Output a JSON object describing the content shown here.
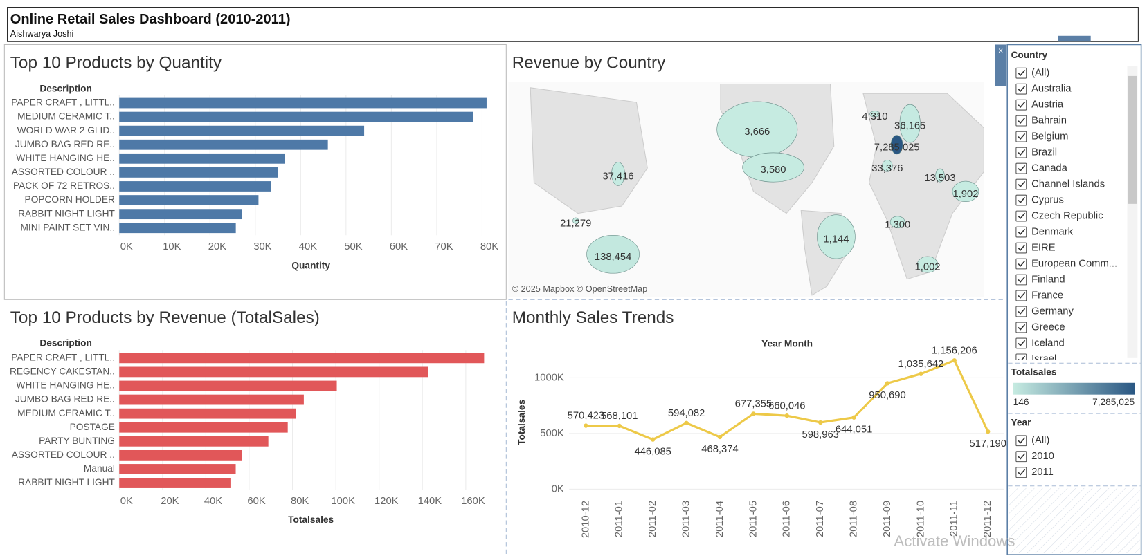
{
  "header": {
    "title": "Online Retail Sales Dashboard (2010-2011)",
    "subtitle": "Aishwarya Joshi"
  },
  "chart_data": [
    {
      "type": "bar",
      "orientation": "horizontal",
      "title": "Top 10 Products by Quantity",
      "y_title": "Description",
      "x_title": "Quantity",
      "categories": [
        "PAPER CRAFT , LITTL..",
        "MEDIUM CERAMIC T..",
        "WORLD WAR 2 GLID..",
        "JUMBO BAG RED RE..",
        "WHITE HANGING HE..",
        "ASSORTED COLOUR ..",
        "PACK OF 72 RETROS..",
        "POPCORN HOLDER",
        "RABBIT NIGHT LIGHT",
        "MINI PAINT SET VIN.."
      ],
      "values": [
        80995,
        78033,
        54000,
        46000,
        36500,
        35000,
        33500,
        30700,
        27000,
        25700
      ],
      "color": "#4e79a7",
      "xlim": [
        0,
        85000
      ],
      "xticks": [
        {
          "value": 0,
          "label": "0K"
        },
        {
          "value": 10000,
          "label": "10K"
        },
        {
          "value": 20000,
          "label": "20K"
        },
        {
          "value": 30000,
          "label": "30K"
        },
        {
          "value": 40000,
          "label": "40K"
        },
        {
          "value": 50000,
          "label": "50K"
        },
        {
          "value": 60000,
          "label": "60K"
        },
        {
          "value": 70000,
          "label": "70K"
        },
        {
          "value": 80000,
          "label": "80K"
        }
      ],
      "grid": true
    },
    {
      "type": "map",
      "title": "Revenue by Country",
      "credit": "© 2025 Mapbox © OpenStreetMap",
      "values": [
        3666,
        3580,
        37416,
        21279,
        138454,
        4310,
        36165,
        7285025,
        33376,
        13503,
        1902,
        1300,
        1144,
        1002
      ],
      "value_labels": [
        "3,666",
        "3,580",
        "37,416",
        "21,279",
        "138,454",
        "4,310",
        "36,165",
        "7,285,025",
        "33,376",
        "13,503",
        "1,902",
        "1,300",
        "1,144",
        "1,002"
      ],
      "color_scale": {
        "title": "Totalsales",
        "ticks": [
          146,
          {
            "value": 7285025,
            "label": "7,285,025"
          }
        ],
        "colors": [
          "#c6ebe1",
          "#2a5783"
        ]
      }
    },
    {
      "type": "bar",
      "orientation": "horizontal",
      "title": "Top 10 Products by Revenue (TotalSales)",
      "y_title": "Description",
      "x_title": "Totalsales",
      "categories": [
        "PAPER CRAFT , LITTL..",
        "REGENCY CAKESTAN..",
        "WHITE HANGING HE..",
        "JUMBO BAG RED RE..",
        "MEDIUM CERAMIC T..",
        "POSTAGE",
        "PARTY BUNTING",
        "ASSORTED COLOUR ..",
        "Manual",
        "RABBIT NIGHT LIGHT"
      ],
      "values": [
        168469,
        142593,
        100448,
        85220,
        81417,
        77804,
        68844,
        56580,
        53779,
        51346
      ],
      "color": "#e15759",
      "xlim": [
        0,
        178000
      ],
      "xticks": [
        {
          "value": 0,
          "label": "0K"
        },
        {
          "value": 20000,
          "label": "20K"
        },
        {
          "value": 40000,
          "label": "40K"
        },
        {
          "value": 60000,
          "label": "60K"
        },
        {
          "value": 80000,
          "label": "80K"
        },
        {
          "value": 100000,
          "label": "100K"
        },
        {
          "value": 120000,
          "label": "120K"
        },
        {
          "value": 140000,
          "label": "140K"
        },
        {
          "value": 160000,
          "label": "160K"
        }
      ],
      "grid": true
    },
    {
      "type": "line",
      "title": "Monthly Sales Trends",
      "x_title": "Year Month",
      "y_title": "Totalsales",
      "categories": [
        "2010-12",
        "2011-01",
        "2011-02",
        "2011-03",
        "2011-04",
        "2011-05",
        "2011-06",
        "2011-07",
        "2011-08",
        "2011-09",
        "2011-10",
        "2011-11",
        "2011-12"
      ],
      "values": [
        570423,
        568101,
        446085,
        594082,
        468374,
        677355,
        660046,
        598963,
        644051,
        950690,
        1035642,
        1156206,
        517190
      ],
      "value_labels": [
        "570,423",
        "568,101",
        "446,085",
        "594,082",
        "468,374",
        "677,355",
        "660,046",
        "598,963",
        "644,051",
        "950,690",
        "1,035,642",
        "1,156,206",
        "517,190"
      ],
      "color": "#edc948",
      "ylim": [
        -70000,
        1250000
      ],
      "yticks": [
        {
          "value": 0,
          "label": "0K"
        },
        {
          "value": 500000,
          "label": "500K"
        },
        {
          "value": 1000000,
          "label": "1000K"
        }
      ],
      "grid": true
    }
  ],
  "filters": {
    "country": {
      "title": "Country",
      "items": [
        "(All)",
        "Australia",
        "Austria",
        "Bahrain",
        "Belgium",
        "Brazil",
        "Canada",
        "Channel Islands",
        "Cyprus",
        "Czech Republic",
        "Denmark",
        "EIRE",
        "European Comm...",
        "Finland",
        "France",
        "Germany",
        "Greece",
        "Iceland",
        "Israel"
      ]
    },
    "year": {
      "title": "Year",
      "items": [
        "(All)",
        "2010",
        "2011"
      ]
    }
  },
  "watermark": "Activate Windows"
}
